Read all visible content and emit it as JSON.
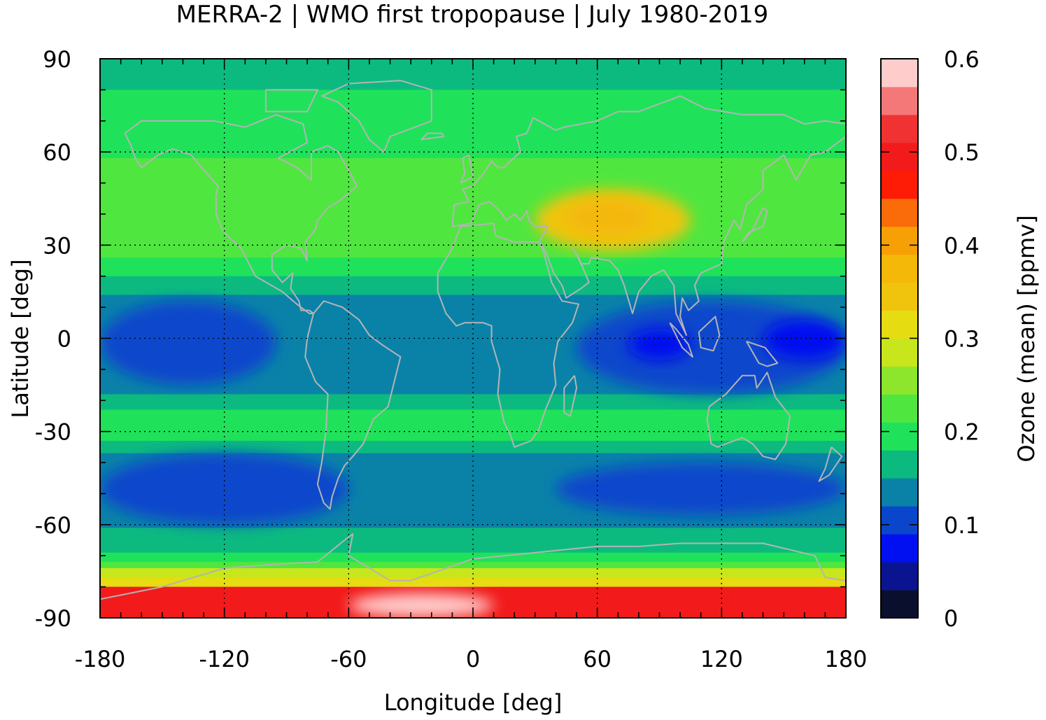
{
  "chart_data": {
    "type": "heatmap",
    "title": "MERRA-2 | WMO first tropopause | July 1980-2019",
    "xlabel": "Longitude [deg]",
    "ylabel": "Latitude [deg]",
    "xlim": [
      -180,
      180
    ],
    "ylim": [
      -90,
      90
    ],
    "x_ticks": [
      "-180",
      "-120",
      "-60",
      "0",
      "60",
      "120",
      "180"
    ],
    "y_ticks": [
      "90",
      "60",
      "30",
      "0",
      "-30",
      "-60",
      "-90"
    ],
    "grid": true,
    "basemap": "coastlines",
    "colorbar": {
      "label": "Ozone (mean) [ppmv]",
      "range": [
        0,
        0.6
      ],
      "ticks": [
        "0",
        "0.1",
        "0.2",
        "0.3",
        "0.4",
        "0.5",
        "0.6"
      ],
      "levels": [
        {
          "from": 0.0,
          "to": 0.03,
          "color": "#0b0f2e"
        },
        {
          "from": 0.03,
          "to": 0.06,
          "color": "#0a1490"
        },
        {
          "from": 0.06,
          "to": 0.09,
          "color": "#0010f0"
        },
        {
          "from": 0.09,
          "to": 0.12,
          "color": "#0a46cc"
        },
        {
          "from": 0.12,
          "to": 0.15,
          "color": "#0a82a8"
        },
        {
          "from": 0.15,
          "to": 0.18,
          "color": "#0cba80"
        },
        {
          "from": 0.18,
          "to": 0.21,
          "color": "#1fe25a"
        },
        {
          "from": 0.21,
          "to": 0.24,
          "color": "#50e640"
        },
        {
          "from": 0.24,
          "to": 0.27,
          "color": "#8ee62c"
        },
        {
          "from": 0.27,
          "to": 0.3,
          "color": "#c8e61c"
        },
        {
          "from": 0.3,
          "to": 0.33,
          "color": "#e6dc12"
        },
        {
          "from": 0.33,
          "to": 0.36,
          "color": "#f0c40c"
        },
        {
          "from": 0.36,
          "to": 0.39,
          "color": "#f4b808"
        },
        {
          "from": 0.39,
          "to": 0.42,
          "color": "#f6a006"
        },
        {
          "from": 0.42,
          "to": 0.45,
          "color": "#fa6c0a"
        },
        {
          "from": 0.45,
          "to": 0.48,
          "color": "#ff1c06"
        },
        {
          "from": 0.48,
          "to": 0.51,
          "color": "#f21a1a"
        },
        {
          "from": 0.51,
          "to": 0.54,
          "color": "#f03232"
        },
        {
          "from": 0.54,
          "to": 0.57,
          "color": "#f57878"
        },
        {
          "from": 0.57,
          "to": 0.6,
          "color": "#ffcccc"
        }
      ]
    },
    "zonal_bands": [
      {
        "lat": [
          80,
          90
        ],
        "value": 0.16
      },
      {
        "lat": [
          68,
          80
        ],
        "value": 0.19
      },
      {
        "lat": [
          58,
          68
        ],
        "value": 0.2
      },
      {
        "lat": [
          48,
          58
        ],
        "value": 0.21
      },
      {
        "lat": [
          26,
          48
        ],
        "value": 0.22
      },
      {
        "lat": [
          20,
          26
        ],
        "value": 0.19
      },
      {
        "lat": [
          14,
          20
        ],
        "value": 0.16
      },
      {
        "lat": [
          -18,
          14
        ],
        "value": 0.14
      },
      {
        "lat": [
          -23,
          -18
        ],
        "value": 0.15
      },
      {
        "lat": [
          -33,
          -23
        ],
        "value": 0.18
      },
      {
        "lat": [
          -37,
          -33
        ],
        "value": 0.15
      },
      {
        "lat": [
          -61,
          -37
        ],
        "value": 0.13
      },
      {
        "lat": [
          -65,
          -61
        ],
        "value": 0.15
      },
      {
        "lat": [
          -69,
          -65
        ],
        "value": 0.17
      },
      {
        "lat": [
          -72,
          -69
        ],
        "value": 0.2
      },
      {
        "lat": [
          -74,
          -72
        ],
        "value": 0.23
      },
      {
        "lat": [
          -77,
          -74
        ],
        "value": 0.28
      },
      {
        "lat": [
          -80,
          -77
        ],
        "value": 0.32
      },
      {
        "lat": [
          -90,
          -80
        ],
        "value": 0.5
      }
    ],
    "features": [
      {
        "label": "Asian monsoon anticyclone",
        "lon": [
          30,
          105
        ],
        "lat": [
          28,
          48
        ],
        "value": 0.33
      },
      {
        "label": "Asian monsoon core",
        "lon": [
          45,
          85
        ],
        "lat": [
          33,
          45
        ],
        "value": 0.36
      },
      {
        "label": "tropical low (Pacific)",
        "lon": [
          -180,
          -95
        ],
        "lat": [
          -15,
          12
        ],
        "value": 0.11
      },
      {
        "label": "tropical low (Indian Ocean / W Pacific)",
        "lon": [
          50,
          180
        ],
        "lat": [
          -18,
          12
        ],
        "value": 0.11
      },
      {
        "label": "tropical minimum (Indian Ocean)",
        "lon": [
          75,
          105
        ],
        "lat": [
          -7,
          3
        ],
        "value": 0.08
      },
      {
        "label": "tropical minimum (W Pacific)",
        "lon": [
          140,
          180
        ],
        "lat": [
          -7,
          6
        ],
        "value": 0.08
      },
      {
        "label": "southern mid-latitude low (Pacific)",
        "lon": [
          -180,
          -60
        ],
        "lat": [
          -60,
          -37
        ],
        "value": 0.11
      },
      {
        "label": "southern mid-latitude low (Indian Ocean)",
        "lon": [
          40,
          180
        ],
        "lat": [
          -57,
          -40
        ],
        "value": 0.11
      },
      {
        "label": "Antarctic maximum",
        "lon": [
          -60,
          10
        ],
        "lat": [
          -90,
          -82
        ],
        "value": 0.58
      }
    ]
  }
}
